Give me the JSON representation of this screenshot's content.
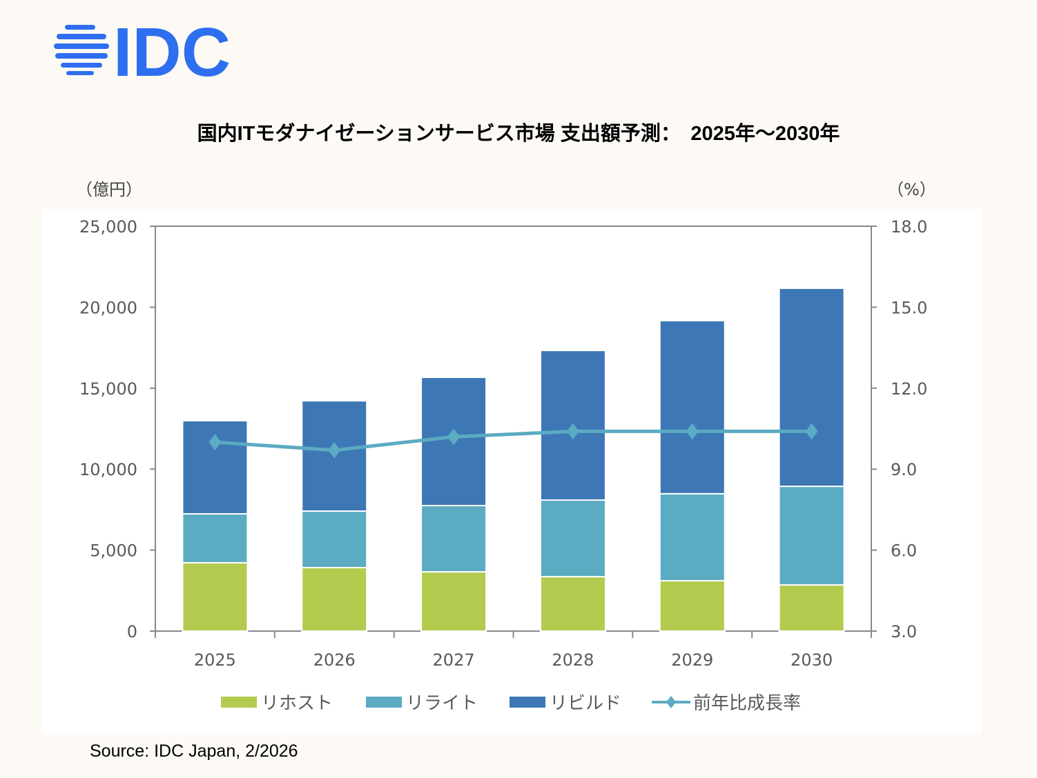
{
  "logo": {
    "text": "IDC",
    "color": "#2f6fef"
  },
  "source": "Source: IDC Japan, 2/2026",
  "chart_data": {
    "type": "bar",
    "stacked": true,
    "title": "国内ITモダナイゼーションサービス市場 支出額予測：　2025年～2030年",
    "categories": [
      "2025",
      "2026",
      "2027",
      "2028",
      "2029",
      "2030"
    ],
    "y_left_unit": "（億円）",
    "y_right_unit": "（%）",
    "ylim": [
      0,
      25000
    ],
    "y_ticks": [
      "0",
      "5,000",
      "10,000",
      "15,000",
      "20,000",
      "25,000"
    ],
    "y2lim": [
      3.0,
      18.0
    ],
    "y2_ticks": [
      "3.0",
      "6.0",
      "9.0",
      "12.0",
      "15.0",
      "18.0"
    ],
    "grid": false,
    "legend_position": "bottom",
    "series": [
      {
        "name": "リホスト",
        "color": "#b3cb4e",
        "values": [
          4220,
          3920,
          3660,
          3360,
          3110,
          2850
        ]
      },
      {
        "name": "リライト",
        "color": "#5babc2",
        "values": [
          3020,
          3490,
          4090,
          4730,
          5370,
          6090
        ]
      },
      {
        "name": "リビルド",
        "color": "#3e77b6",
        "values": [
          5750,
          6810,
          7920,
          9240,
          10690,
          12230
        ]
      },
      {
        "name": "前年比成長率",
        "type": "line",
        "axis": "right",
        "color": "#5babc2",
        "marker": "diamond",
        "values": [
          10.0,
          9.7,
          10.2,
          10.4,
          10.4,
          10.4
        ]
      }
    ]
  }
}
